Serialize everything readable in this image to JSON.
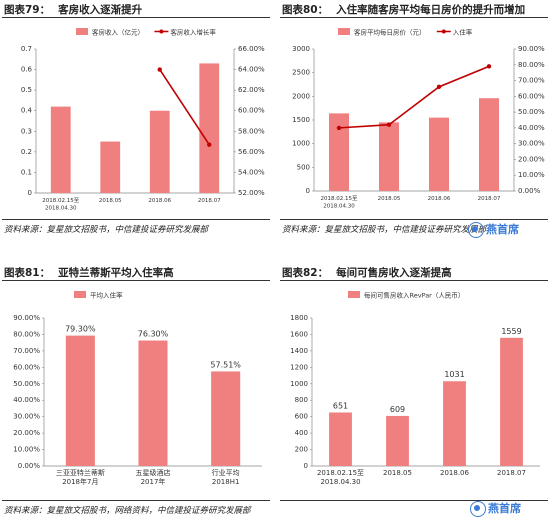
{
  "source_text": "资料来源：复星旅文招股书，中信建投证券研究发展部",
  "source_text_web": "资料来源：复星旅文招股书，网络资料，中信建投证券研究发展部",
  "watermark": "燕首席",
  "colors": {
    "bar": "#f08080",
    "line": "#c00000"
  },
  "chart_data": [
    {
      "type": "bar",
      "number": "图表79：",
      "title": "客房收入逐渐提升",
      "legend": [
        "客房收入（亿元）",
        "客房收入增长率"
      ],
      "categories": [
        "2018.02.15至\n2018.04.30",
        "2018.05",
        "2018.06",
        "2018.07"
      ],
      "series": [
        {
          "name": "客房收入（亿元）",
          "axis": "left",
          "values": [
            0.42,
            0.25,
            0.4,
            0.63
          ]
        },
        {
          "name": "客房收入增长率",
          "axis": "right",
          "values": [
            null,
            null,
            64.0,
            56.7
          ]
        }
      ],
      "y_left": {
        "min": 0,
        "max": 0.7,
        "ticks": [
          "0",
          "0.1",
          "0.2",
          "0.3",
          "0.4",
          "0.5",
          "0.6",
          "0.7"
        ]
      },
      "y_right": {
        "min": 52,
        "max": 66,
        "ticks": [
          "52.00%",
          "54.00%",
          "56.00%",
          "58.00%",
          "60.00%",
          "62.00%",
          "64.00%",
          "66.00%"
        ]
      }
    },
    {
      "type": "bar",
      "number": "图表80：",
      "title": "入住率随客房平均每日房价的提升而增加",
      "legend": [
        "客房平均每日房价（元）",
        "入住率"
      ],
      "categories": [
        "2018.02.15至\n2018.04.30",
        "2018.05",
        "2018.06",
        "2018.07"
      ],
      "series": [
        {
          "name": "客房平均每日房价（元）",
          "axis": "left",
          "values": [
            1640,
            1450,
            1550,
            1960
          ]
        },
        {
          "name": "入住率",
          "axis": "right",
          "values": [
            40,
            42,
            66,
            79
          ]
        }
      ],
      "y_left": {
        "min": 0,
        "max": 3000,
        "ticks": [
          "0",
          "500",
          "1000",
          "1500",
          "2000",
          "2500",
          "3000"
        ]
      },
      "y_right": {
        "min": 0,
        "max": 90,
        "ticks": [
          "0.00%",
          "10.00%",
          "20.00%",
          "30.00%",
          "40.00%",
          "50.00%",
          "60.00%",
          "70.00%",
          "80.00%",
          "90.00%"
        ]
      }
    },
    {
      "type": "bar",
      "number": "图表81：",
      "title": "亚特兰蒂斯平均入住率高",
      "legend": [
        "平均入住率"
      ],
      "categories": [
        "三亚亚特兰蒂斯\n2018年7月",
        "五星级酒店\n2017年",
        "行业平均\n2018H1"
      ],
      "series": [
        {
          "name": "平均入住率",
          "values": [
            79.3,
            76.3,
            57.51
          ]
        }
      ],
      "data_labels": [
        "79.30%",
        "76.30%",
        "57.51%"
      ],
      "y_left": {
        "min": 0,
        "max": 90,
        "ticks": [
          "0.00%",
          "10.00%",
          "20.00%",
          "30.00%",
          "40.00%",
          "50.00%",
          "60.00%",
          "70.00%",
          "80.00%",
          "90.00%"
        ]
      }
    },
    {
      "type": "bar",
      "number": "图表82：",
      "title": "每间可售房收入逐渐提高",
      "legend": [
        "每间可售房收入RevPar（人民币）"
      ],
      "categories": [
        "2018.02.15至\n2018.04.30",
        "2018.05",
        "2018.06",
        "2018.07"
      ],
      "series": [
        {
          "name": "每间可售房收入RevPar（人民币）",
          "values": [
            651,
            609,
            1031,
            1559
          ]
        }
      ],
      "data_labels": [
        "651",
        "609",
        "1031",
        "1559"
      ],
      "y_left": {
        "min": 0,
        "max": 1800,
        "ticks": [
          "0",
          "200",
          "400",
          "600",
          "800",
          "1000",
          "1200",
          "1400",
          "1600",
          "1800"
        ]
      }
    }
  ]
}
